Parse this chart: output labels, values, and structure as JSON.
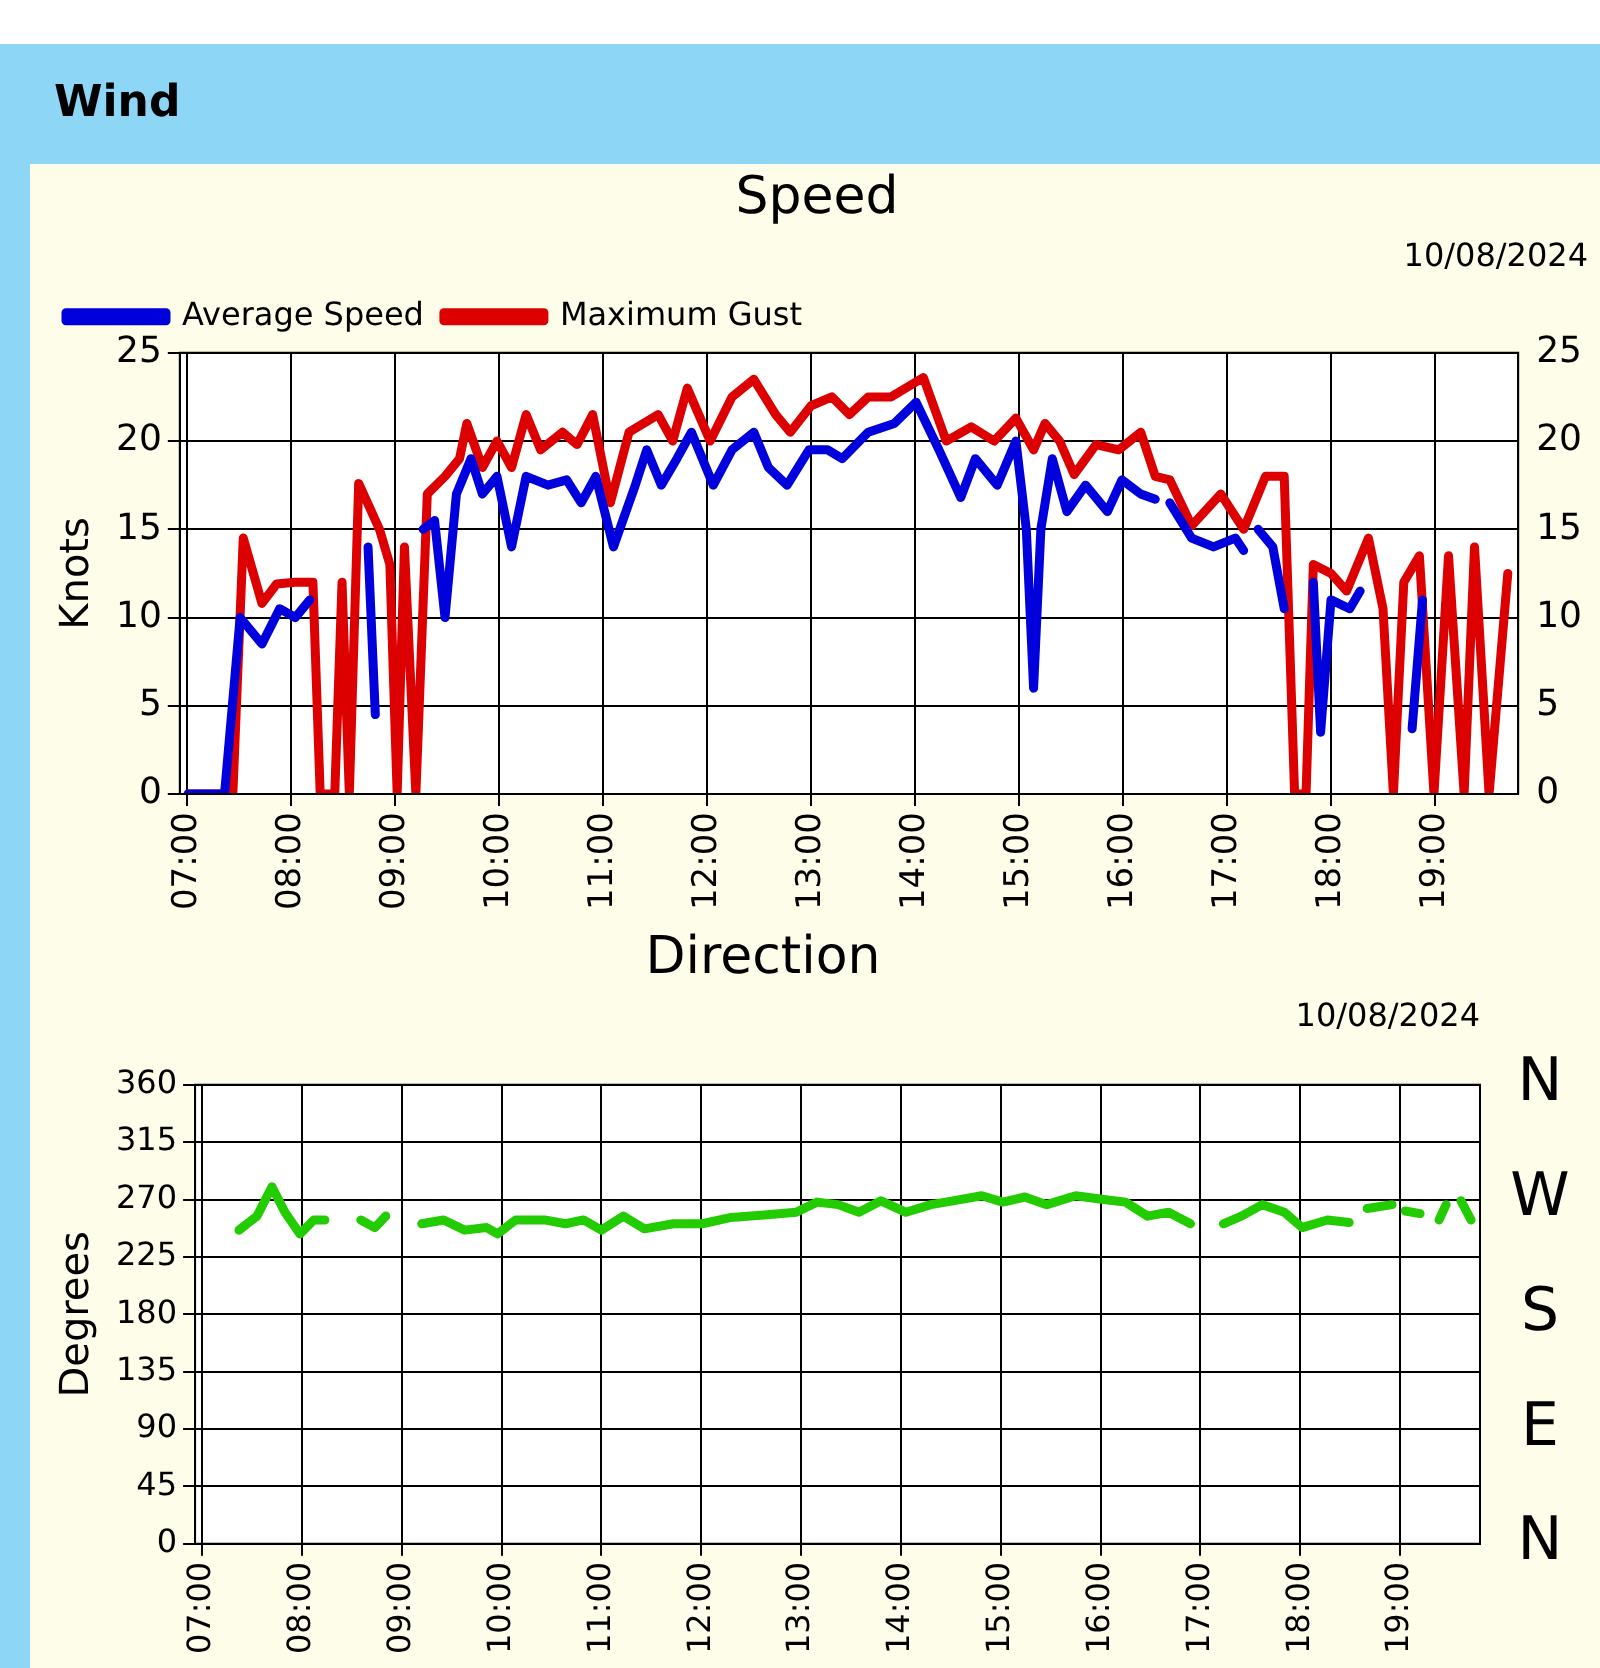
{
  "chart_data": [
    {
      "type": "line",
      "title": "Speed",
      "subtitle": "10/08/2024",
      "annotations": [
        "Wind"
      ],
      "ylabel": "Knots",
      "legend": "top left",
      "grid": true,
      "marker": "none",
      "line_style": "solid",
      "xlim": [
        6.93,
        19.8
      ],
      "xticks": [
        {
          "value": 7,
          "label": "07:00"
        },
        {
          "value": 8,
          "label": "08:00"
        },
        {
          "value": 9,
          "label": "09:00"
        },
        {
          "value": 10,
          "label": "10:00"
        },
        {
          "value": 11,
          "label": "11:00"
        },
        {
          "value": 12,
          "label": "12:00"
        },
        {
          "value": 13,
          "label": "13:00"
        },
        {
          "value": 14,
          "label": "14:00"
        },
        {
          "value": 15,
          "label": "15:00"
        },
        {
          "value": 16,
          "label": "16:00"
        },
        {
          "value": 17,
          "label": "17:00"
        },
        {
          "value": 18,
          "label": "18:00"
        },
        {
          "value": 19,
          "label": "19:00"
        }
      ],
      "ylim": [
        0,
        25
      ],
      "yticks": [
        0,
        5,
        10,
        15,
        20,
        25
      ],
      "y2lim": [
        0,
        25
      ],
      "y2ticks": [
        0,
        5,
        10,
        15,
        20,
        25
      ],
      "series": [
        {
          "name": "Average Speed",
          "color": "#0000dd",
          "x": [
            7.01,
            7.36,
            7.51,
            7.72,
            7.89,
            8.04,
            8.18,
            8.25,
            8.74,
            8.81,
            8.9,
            9.27,
            9.38,
            9.48,
            9.59,
            9.73,
            9.84,
            9.98,
            10.12,
            10.26,
            10.47,
            10.65,
            10.79,
            10.93,
            11.1,
            11.31,
            11.42,
            11.56,
            11.71,
            11.85,
            12.06,
            12.24,
            12.45,
            12.59,
            12.77,
            12.98,
            13.16,
            13.3,
            13.55,
            13.8,
            14.01,
            14.23,
            14.44,
            14.58,
            14.79,
            14.97,
            15.07,
            15.14,
            15.21,
            15.32,
            15.46,
            15.64,
            15.85,
            15.99,
            16.17,
            16.31,
            16.38,
            16.45,
            16.66,
            16.87,
            17.08,
            17.16,
            17.23,
            17.3,
            17.44,
            17.55,
            17.7,
            17.83,
            17.9,
            18.0,
            18.18,
            18.28,
            18.5,
            18.78,
            18.88
          ],
          "values": [
            0,
            0,
            10,
            8.5,
            10.5,
            10,
            11,
            null,
            14,
            4.5,
            null,
            15,
            15.5,
            10,
            17,
            19,
            17,
            18,
            14,
            18,
            17.5,
            17.8,
            16.5,
            18,
            14,
            17.5,
            19.5,
            17.5,
            19,
            20.5,
            17.5,
            19.5,
            20.5,
            18.5,
            17.5,
            19.5,
            19.5,
            19,
            20.5,
            21,
            22.2,
            19.5,
            16.8,
            19,
            17.5,
            20,
            15,
            6,
            15,
            19,
            16,
            17.5,
            16,
            17.8,
            17,
            16.7,
            null,
            16.5,
            14.5,
            14,
            14.5,
            13.8,
            null,
            15,
            14,
            10.5,
            null,
            12,
            3.5,
            11,
            10.5,
            11.5,
            null,
            3.7,
            11
          ]
        },
        {
          "name": "Maximum Gust",
          "color": "#dd0000",
          "x": [
            7.01,
            7.44,
            7.54,
            7.72,
            7.86,
            8.04,
            8.21,
            8.28,
            8.42,
            8.49,
            8.56,
            8.65,
            8.85,
            8.95,
            9.02,
            9.09,
            9.2,
            9.31,
            9.48,
            9.62,
            9.69,
            9.84,
            9.98,
            10.12,
            10.26,
            10.4,
            10.61,
            10.75,
            10.9,
            11.07,
            11.25,
            11.53,
            11.67,
            11.81,
            12.03,
            12.24,
            12.45,
            12.66,
            12.8,
            13.0,
            13.2,
            13.37,
            13.55,
            13.77,
            14.08,
            14.3,
            14.54,
            14.76,
            14.97,
            15.14,
            15.25,
            15.39,
            15.53,
            15.74,
            15.96,
            16.17,
            16.31,
            16.45,
            16.66,
            16.94,
            17.16,
            17.37,
            17.55,
            17.65,
            17.76,
            17.83,
            18.0,
            18.15,
            18.36,
            18.5,
            18.6,
            18.7,
            18.85,
            18.99,
            19.13,
            19.28,
            19.38,
            19.52,
            19.7
          ],
          "values": [
            0,
            0,
            14.5,
            10.8,
            11.9,
            12,
            12,
            0,
            0,
            12,
            0,
            17.6,
            15,
            13,
            0,
            14,
            0,
            17,
            18,
            19,
            21,
            18.5,
            20,
            18.5,
            21.5,
            19.5,
            20.5,
            19.8,
            21.5,
            16.5,
            20.5,
            21.5,
            20,
            23,
            20,
            22.5,
            23.5,
            21.5,
            20.5,
            22,
            22.5,
            21.5,
            22.5,
            22.5,
            23.6,
            20,
            20.8,
            20,
            21.3,
            19.5,
            21,
            20,
            18.1,
            19.8,
            19.5,
            20.5,
            18,
            17.8,
            15.2,
            17,
            15,
            18,
            18,
            0,
            0,
            13,
            12.5,
            11.5,
            14.5,
            10.5,
            0,
            12,
            13.5,
            0,
            13.5,
            0,
            14,
            0,
            12.5
          ]
        }
      ]
    },
    {
      "type": "line",
      "title": "Direction",
      "subtitle": "10/08/2024",
      "ylabel": "Degrees",
      "legend": false,
      "grid": true,
      "marker": "none",
      "line_style": "solid",
      "xlim": [
        6.93,
        19.8
      ],
      "xticks": [
        {
          "value": 7,
          "label": "07:00"
        },
        {
          "value": 8,
          "label": "08:00"
        },
        {
          "value": 9,
          "label": "09:00"
        },
        {
          "value": 10,
          "label": "10:00"
        },
        {
          "value": 11,
          "label": "11:00"
        },
        {
          "value": 12,
          "label": "12:00"
        },
        {
          "value": 13,
          "label": "13:00"
        },
        {
          "value": 14,
          "label": "14:00"
        },
        {
          "value": 15,
          "label": "15:00"
        },
        {
          "value": 16,
          "label": "16:00"
        },
        {
          "value": 17,
          "label": "17:00"
        },
        {
          "value": 18,
          "label": "18:00"
        },
        {
          "value": 19,
          "label": "19:00"
        }
      ],
      "ylim": [
        0,
        360
      ],
      "yticks": [
        0,
        45,
        90,
        135,
        180,
        225,
        270,
        315,
        360
      ],
      "annotations": [
        "N",
        "W",
        "S",
        "E",
        "N"
      ],
      "series": [
        {
          "color": "#22cc00",
          "x": [
            7.37,
            7.55,
            7.7,
            7.83,
            7.98,
            8.12,
            8.23,
            8.4,
            8.59,
            8.73,
            8.84,
            9.0,
            9.2,
            9.42,
            9.63,
            9.85,
            9.96,
            10.14,
            10.43,
            10.64,
            10.82,
            11.0,
            11.22,
            11.43,
            11.72,
            12.01,
            12.3,
            12.66,
            12.95,
            13.16,
            13.37,
            13.58,
            13.8,
            14.05,
            14.3,
            14.52,
            14.81,
            15.02,
            15.24,
            15.46,
            15.75,
            16.03,
            16.25,
            16.47,
            16.68,
            16.9,
            17.05,
            17.23,
            17.41,
            17.62,
            17.84,
            18.02,
            18.27,
            18.49,
            18.58,
            18.67,
            18.92,
            19.0,
            19.05,
            19.2,
            19.27,
            19.39,
            19.46,
            19.54,
            19.61,
            19.71
          ],
          "values": [
            246,
            257,
            280,
            260,
            243,
            254,
            254,
            null,
            254,
            248,
            257,
            null,
            251,
            254,
            246,
            248,
            243,
            254,
            254,
            251,
            254,
            246,
            257,
            247,
            251,
            251,
            256,
            258,
            260,
            268,
            266,
            260,
            269,
            260,
            266,
            269,
            273,
            268,
            272,
            266,
            273,
            270,
            268,
            257,
            260,
            251,
            null,
            251,
            257,
            266,
            260,
            248,
            254,
            252,
            null,
            263,
            266,
            null,
            261,
            259,
            null,
            254,
            266,
            null,
            269,
            254
          ]
        }
      ]
    }
  ]
}
